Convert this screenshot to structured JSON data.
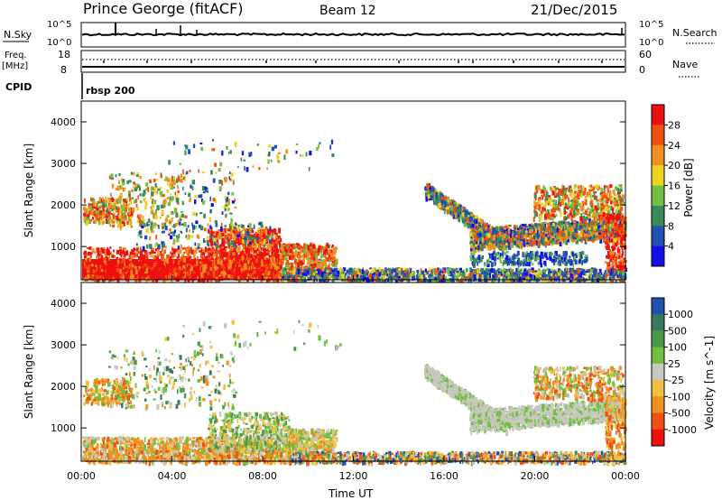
{
  "header": {
    "station": "Prince George (fitACF)",
    "beam": "Beam 12",
    "date": "21/Dec/2015"
  },
  "top_panels": {
    "nsky_label": "N.Sky",
    "nsky_ticks": [
      "10^5",
      "10^0"
    ],
    "nsky_right_ticks": [
      "10^5",
      "10^0"
    ],
    "nsearch_label": "N.Search",
    "freq_label_1": "Freq.",
    "freq_label_2": "[MHz]",
    "freq_ticks": [
      "18",
      "8"
    ],
    "nave_ticks": [
      "60",
      "0"
    ],
    "nave_label": "Nave",
    "cpid_label": "CPID",
    "cpid_value": "rbsp 200"
  },
  "chart_data": [
    {
      "type": "heatmap",
      "title": "",
      "ylabel": "Slant Range [km]",
      "xlabel": "",
      "y_ticks": [
        "1000",
        "2000",
        "3000",
        "4000"
      ],
      "ylim": [
        200,
        4500
      ],
      "colorbar_label": "Power [dB]",
      "colorbar_ticks": [
        "4",
        "8",
        "12",
        "16",
        "20",
        "24",
        "28"
      ],
      "colors": [
        "#1010ee",
        "#2050b0",
        "#3a8a5a",
        "#72c040",
        "#f0d020",
        "#f09020",
        "#f05010",
        "#ee1010"
      ]
    },
    {
      "type": "heatmap",
      "title": "",
      "ylabel": "Slant Range [km]",
      "xlabel": "Time UT",
      "y_ticks": [
        "1000",
        "2000",
        "3000",
        "4000"
      ],
      "ylim": [
        200,
        4500
      ],
      "x_ticks": [
        "00:00",
        "04:00",
        "08:00",
        "12:00",
        "16:00",
        "20:00",
        "00:00"
      ],
      "colorbar_label": "Velocity [m s^-1]",
      "colorbar_ticks": [
        "1000",
        "500",
        "100",
        "25",
        "-25",
        "-100",
        "-500",
        "-1000"
      ],
      "colors": [
        "#2050b0",
        "#3a7a5a",
        "#4a9a4a",
        "#70c040",
        "#c8c8c0",
        "#f0c040",
        "#f09020",
        "#f05010",
        "#ee1010"
      ]
    }
  ]
}
